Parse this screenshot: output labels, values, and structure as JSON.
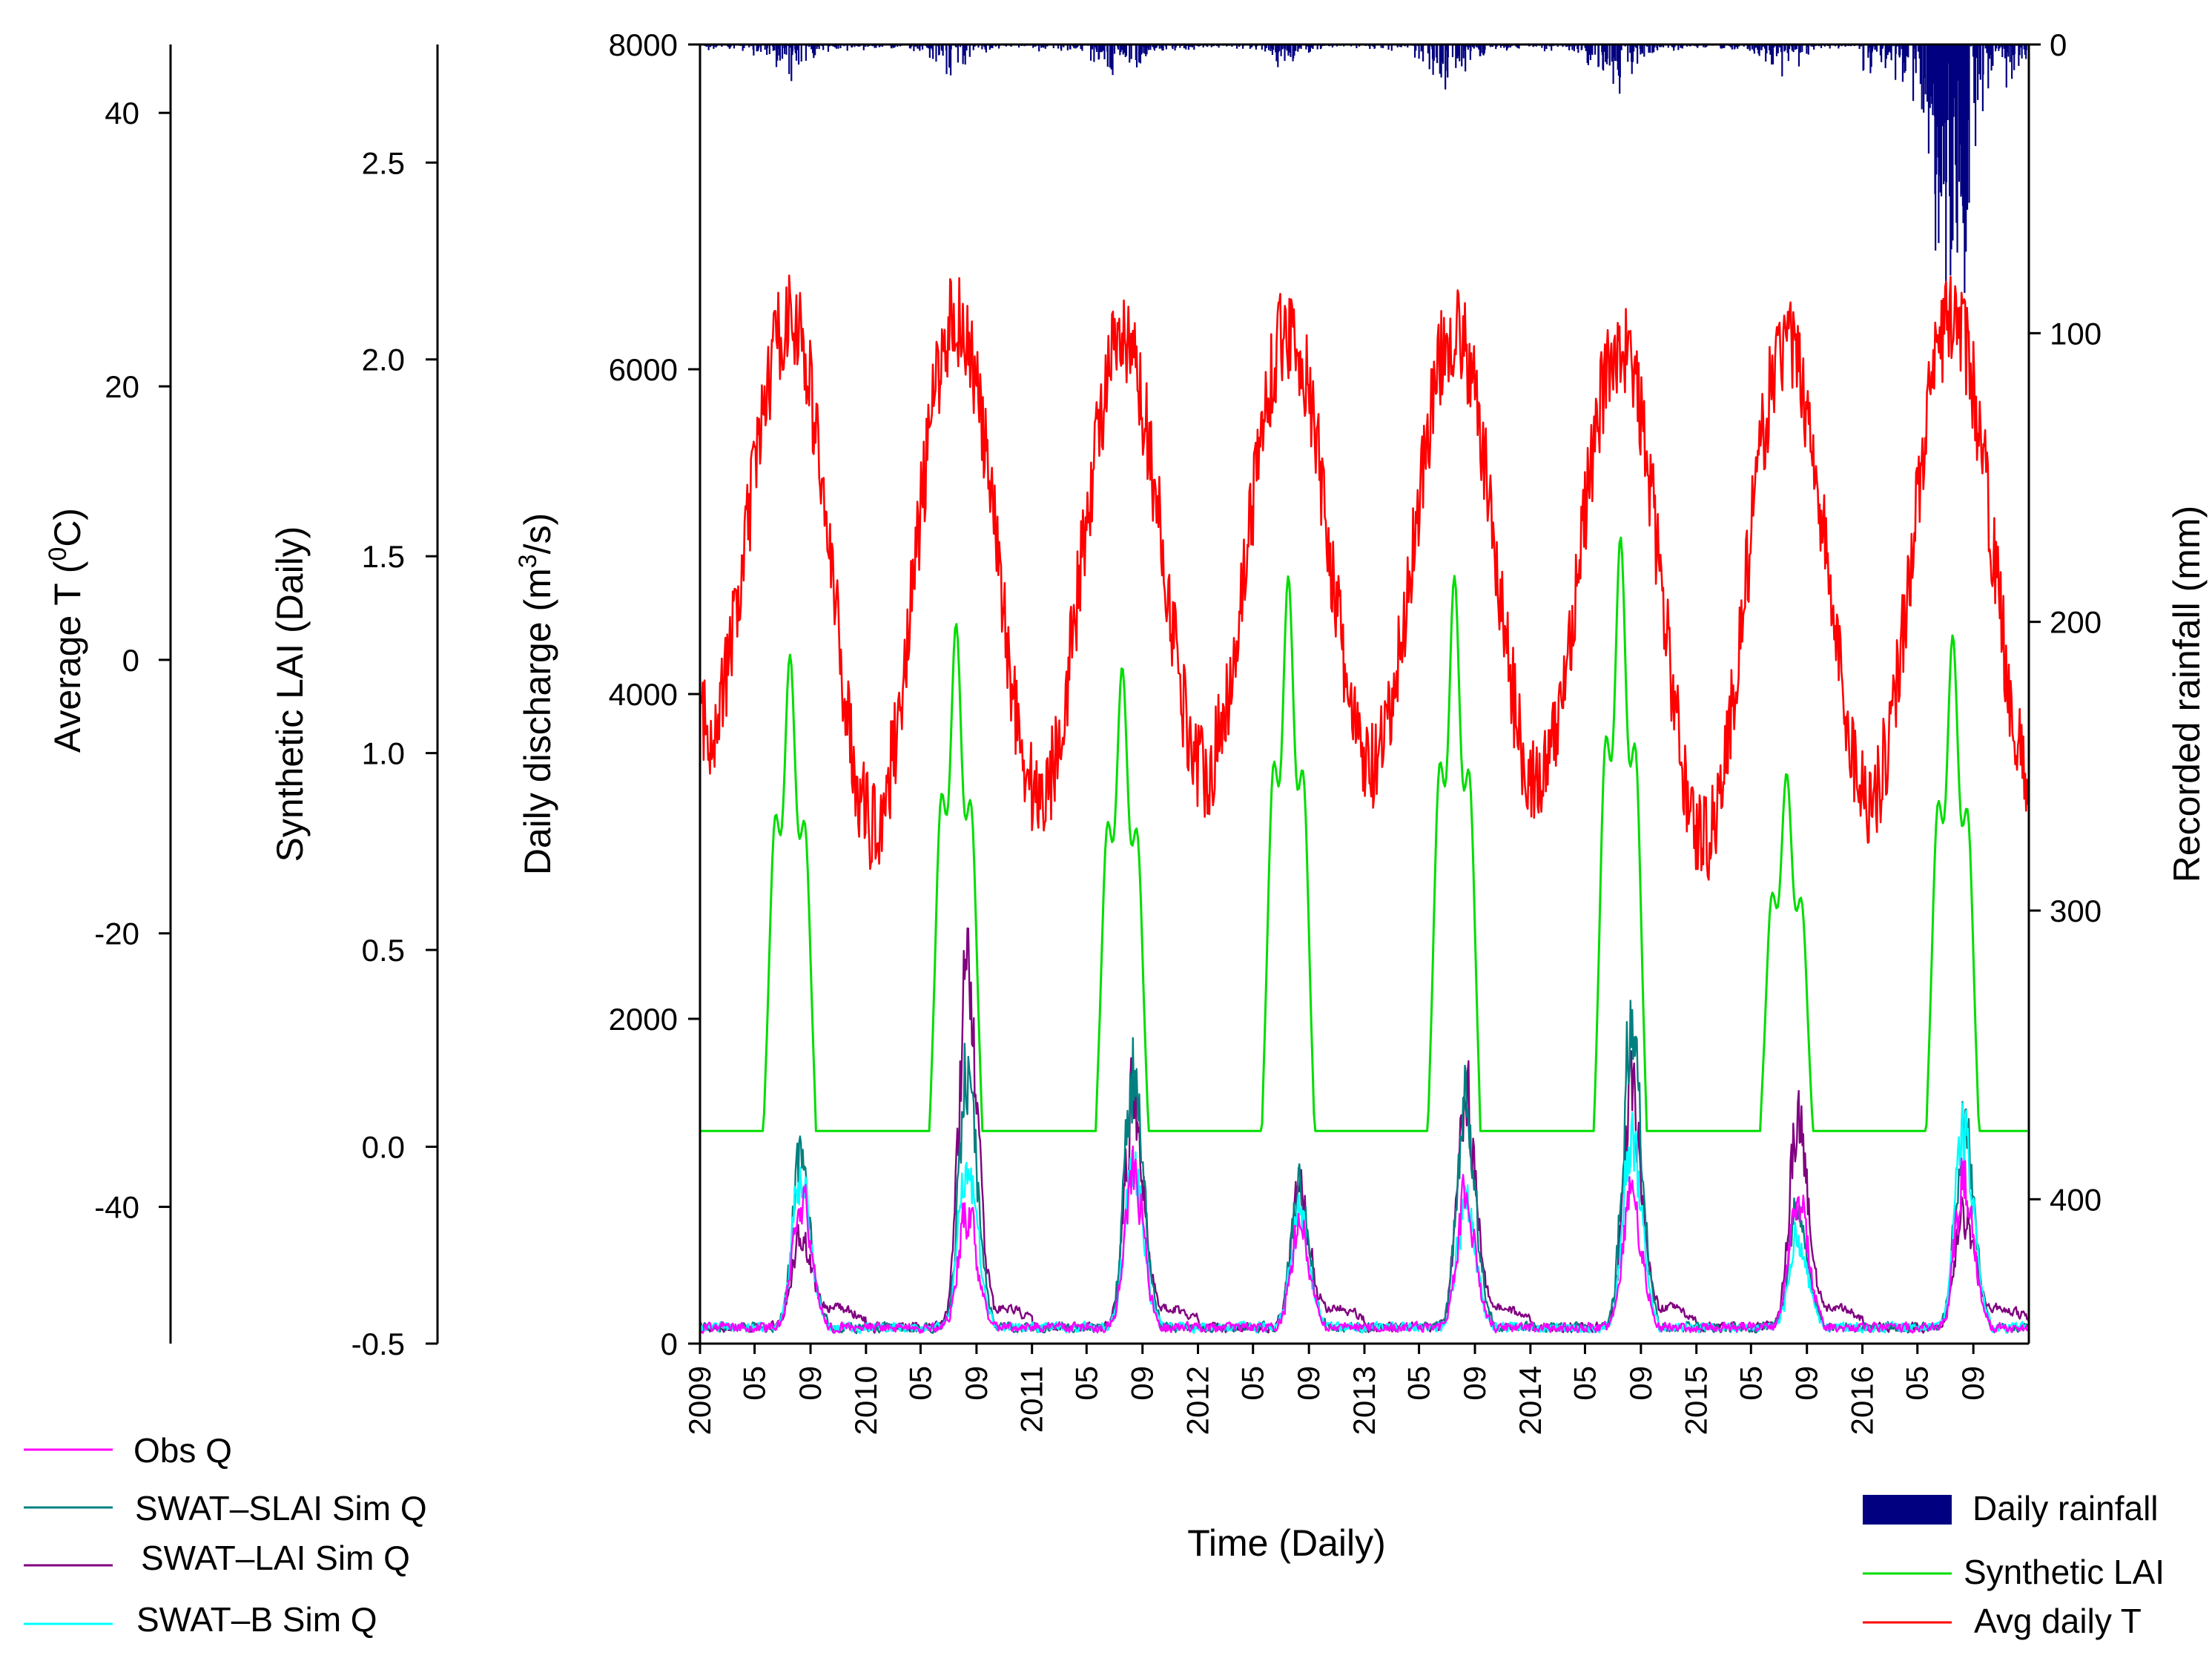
{
  "chart_data": {
    "type": "line",
    "title": "",
    "xlabel": "Time (Daily)",
    "x_range": [
      "2009-01-01",
      "2016-12-31"
    ],
    "x_ticks": [
      "2009",
      "05",
      "09",
      "2010",
      "05",
      "09",
      "2011",
      "05",
      "09",
      "2012",
      "05",
      "09",
      "2013",
      "05",
      "09",
      "2014",
      "05",
      "09",
      "2015",
      "05",
      "09",
      "2016",
      "05",
      "09"
    ],
    "axes": {
      "discharge": {
        "label": "Daily discharge (m³/s)",
        "label_main": "Daily discharge (m",
        "label_sup": "3",
        "label_tail": "/s)",
        "range": [
          0,
          8000
        ],
        "ticks": [
          0,
          2000,
          4000,
          6000,
          8000
        ]
      },
      "rainfall": {
        "label": "Recorded rainfall (mm)",
        "range": [
          0,
          450
        ],
        "inverted": true,
        "ticks": [
          0,
          100,
          200,
          300,
          400
        ]
      },
      "lai": {
        "label": "Synthetic LAI (Daily)",
        "range": [
          -0.5,
          2.8
        ],
        "ticks": [
          "-0.5",
          "0.0",
          "0.5",
          "1.0",
          "1.5",
          "2.0",
          "2.5"
        ]
      },
      "temperature": {
        "label": "Average T (°C)",
        "label_main": "Average T (",
        "label_sup": "0",
        "label_tail": "C)",
        "range": [
          -50,
          45
        ],
        "ticks": [
          -40,
          -20,
          0,
          20,
          40
        ]
      }
    },
    "series": [
      {
        "name": "Obs Q",
        "axis": "discharge",
        "color": "#ff00ff",
        "peaks": [
          1100,
          900,
          1300,
          800,
          1000,
          1100,
          1100,
          1200
        ]
      },
      {
        "name": "SWAT–SLAI Sim Q",
        "axis": "discharge",
        "color": "#008080",
        "peaks": [
          1300,
          2000,
          2100,
          1100,
          1800,
          2450,
          900,
          1600
        ]
      },
      {
        "name": "SWAT–LAI Sim Q",
        "axis": "discharge",
        "color": "#800080",
        "peaks": [
          700,
          2650,
          1800,
          1000,
          1800,
          1800,
          1600,
          900
        ]
      },
      {
        "name": "SWAT–B Sim Q",
        "axis": "discharge",
        "color": "#00ffff",
        "peaks": [
          1250,
          1300,
          1300,
          900,
          1000,
          1450,
          700,
          1550
        ]
      },
      {
        "name": "Synthetic LAI",
        "axis": "lai",
        "color": "#00dd00",
        "baseline": 0.04,
        "peaks": [
          1.25,
          1.33,
          1.22,
          1.45,
          1.45,
          1.55,
          0.95,
          1.3
        ]
      },
      {
        "name": "Avg daily T",
        "axis": "temperature",
        "color": "#ff0000",
        "summer_max": [
          25,
          25,
          23,
          24,
          24,
          23,
          23,
          25
        ],
        "winter_min": [
          -5,
          -12,
          -10,
          -8,
          -8,
          -9,
          -13,
          -10
        ]
      },
      {
        "name": "Daily rainfall",
        "axis": "rainfall",
        "color": "#000080",
        "type": "bar",
        "max_values": [
          16,
          12,
          20,
          10,
          18,
          20,
          12,
          103
        ]
      }
    ],
    "legend_left": [
      "Obs Q",
      "SWAT–SLAI Sim Q",
      "SWAT–LAI Sim Q",
      "SWAT–B Sim Q"
    ],
    "legend_right": [
      "Daily rainfall",
      "Synthetic LAI",
      "Avg daily T"
    ]
  }
}
